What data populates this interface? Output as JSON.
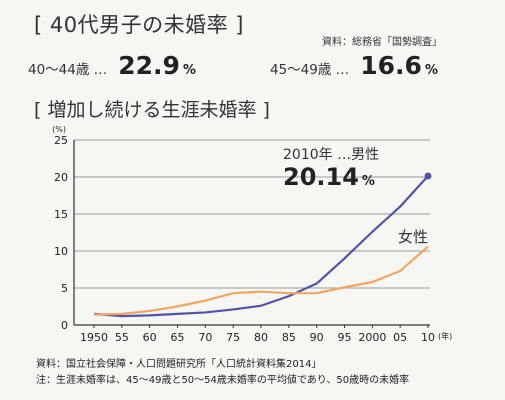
{
  "header": {
    "title": "[ 40代男子の未婚率 ]",
    "source": "資料：総務省「国勢調査」"
  },
  "stats": [
    {
      "label": "40〜44歳 …",
      "value": "22.9",
      "unit": "%"
    },
    {
      "label": "45〜49歳 …",
      "value": "16.6",
      "unit": "%"
    }
  ],
  "subtitle": "[ 増加し続ける生涯未婚率 ]",
  "annotation": {
    "line1": "2010年 …男性",
    "value": "20.14",
    "unit": "%"
  },
  "footer": {
    "source": "資料：国立社会保障・人口問題研究所「人口統計資料集2014」",
    "note": "注：生涯未婚率は、45〜49歳と50〜54歳未婚率の平均値であり、50歳時の未婚率"
  },
  "chart_data": {
    "type": "line",
    "x_tick_labels": [
      "1950",
      "55",
      "60",
      "65",
      "70",
      "75",
      "80",
      "85",
      "90",
      "95",
      "2000",
      "05",
      "10"
    ],
    "x_unit_label": "(年)",
    "x": [
      1950,
      1955,
      1960,
      1965,
      1970,
      1975,
      1980,
      1985,
      1990,
      1995,
      2000,
      2005,
      2010
    ],
    "y_unit_label": "(%)",
    "ylim": [
      0,
      25
    ],
    "yticks": [
      0,
      5,
      10,
      15,
      20,
      25
    ],
    "grid": true,
    "series": [
      {
        "name": "男性",
        "color": "#5054a8",
        "values": [
          1.5,
          1.2,
          1.3,
          1.5,
          1.7,
          2.1,
          2.6,
          3.9,
          5.6,
          9.0,
          12.6,
          16.0,
          20.14
        ],
        "end_marker": true
      },
      {
        "name": "女性",
        "color": "#f0a560",
        "values": [
          1.4,
          1.5,
          1.9,
          2.5,
          3.3,
          4.3,
          4.5,
          4.3,
          4.3,
          5.1,
          5.8,
          7.3,
          10.6
        ]
      }
    ]
  }
}
